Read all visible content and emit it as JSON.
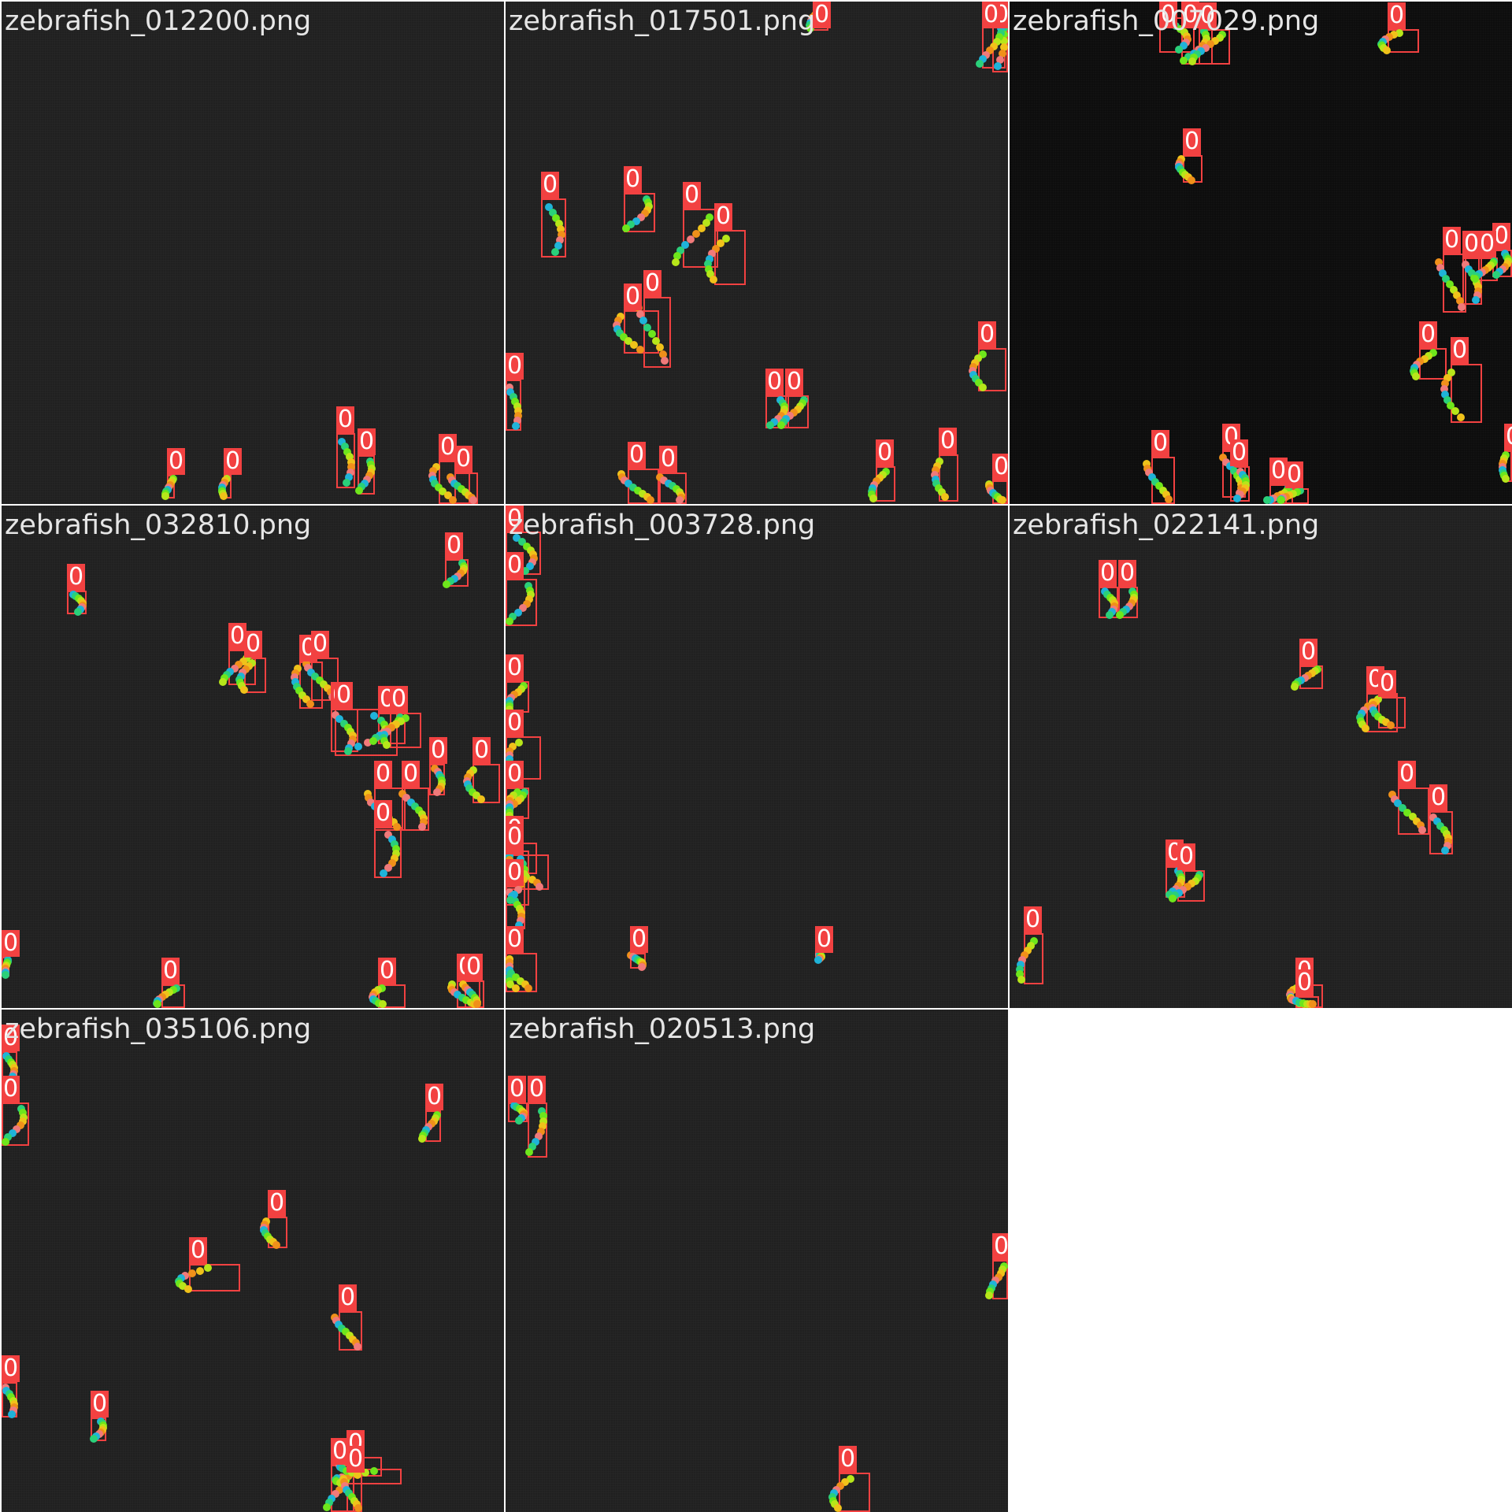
{
  "palette": {
    "box": "#f24141",
    "kp": [
      "#1fb3d9",
      "#2ad07a",
      "#6ee61c",
      "#b7e61a",
      "#f0c21a",
      "#f0901a",
      "#f07a7a"
    ]
  },
  "tiles": [
    {
      "filename": "zebrafish_012200.png",
      "labels": [
        "0",
        "0",
        "0",
        "0",
        "0",
        "0"
      ]
    },
    {
      "filename": "zebrafish_017501.png",
      "labels": [
        "0",
        "0",
        "0",
        "0",
        "0",
        "0",
        "0",
        "0",
        "0",
        "0",
        "0",
        "0",
        "0",
        "0",
        "0",
        "0",
        "0",
        "0"
      ]
    },
    {
      "filename": "zebrafish_007029.png",
      "labels": [
        "0",
        "0",
        "0",
        "0",
        "0",
        "0",
        "0",
        "0",
        "0",
        "0",
        "0",
        "0",
        "0",
        "0",
        "0",
        "0",
        "0"
      ]
    },
    {
      "filename": "zebrafish_032810.png",
      "labels": [
        "0",
        "0",
        "0",
        "0",
        "0",
        "0",
        "0",
        "0",
        "0",
        "0",
        "0",
        "0",
        "0",
        "0",
        "0",
        "0",
        "0",
        "0",
        "0",
        "0"
      ]
    },
    {
      "filename": "zebrafish_003728.png",
      "labels": [
        "0",
        "0",
        "0",
        "0",
        "0",
        "0",
        "0",
        "0",
        "0",
        "0",
        "0",
        "0",
        "0",
        "0"
      ]
    },
    {
      "filename": "zebrafish_022141.png",
      "labels": [
        "0",
        "0",
        "0",
        "0",
        "0",
        "0",
        "0",
        "0",
        "0",
        "0",
        "0",
        "0"
      ]
    },
    {
      "filename": "zebrafish_035106.png",
      "labels": [
        "0",
        "0",
        "0",
        "0",
        "0",
        "0",
        "0",
        "0",
        "0",
        "0",
        "0",
        "0"
      ]
    },
    {
      "filename": "zebrafish_020513.png",
      "labels": [
        "0",
        "0",
        "0",
        "0"
      ]
    }
  ]
}
